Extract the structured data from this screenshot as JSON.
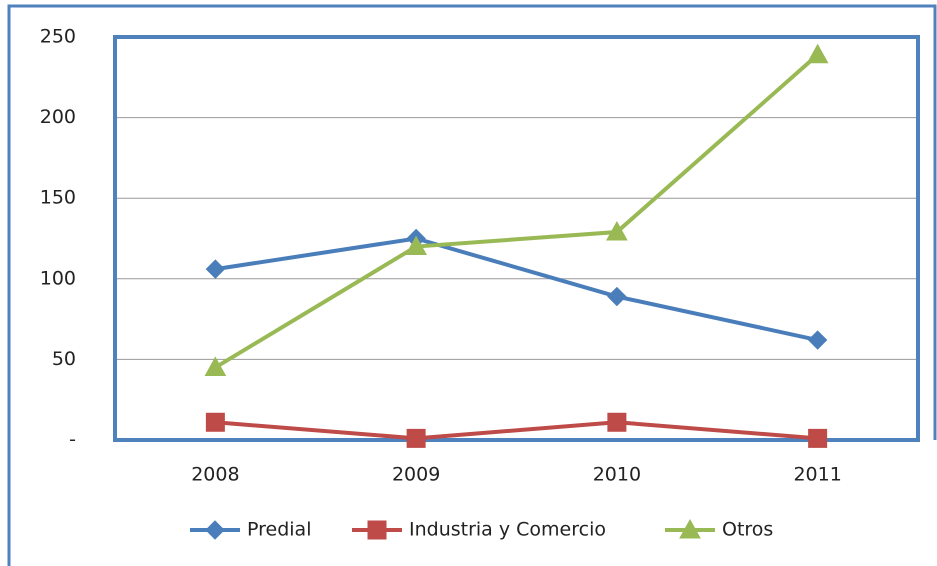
{
  "chart_data": {
    "type": "line",
    "categories": [
      "2008",
      "2009",
      "2010",
      "2011"
    ],
    "series": [
      {
        "name": "Predial",
        "color": "#4a7ebb",
        "marker": "diamond",
        "values": [
          106,
          125,
          89,
          62
        ]
      },
      {
        "name": "Industria y Comercio",
        "color": "#be4b48",
        "marker": "square",
        "values": [
          11,
          1,
          11,
          1
        ]
      },
      {
        "name": "Otros",
        "color": "#98b954",
        "marker": "triangle",
        "values": [
          45,
          120,
          129,
          239
        ]
      }
    ],
    "ylim": [
      0,
      250
    ],
    "yticks": [
      {
        "value": 0,
        "label": "-"
      },
      50,
      100,
      150,
      200,
      250
    ],
    "grid": true,
    "legend": "bottom"
  }
}
